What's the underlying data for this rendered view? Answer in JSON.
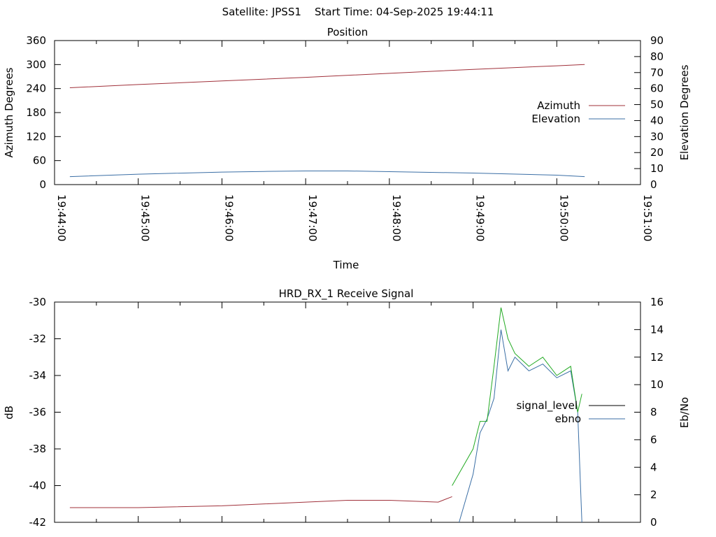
{
  "page_title": "Satellite: JPSS1    Start Time: 04-Sep-2025 19:44:11",
  "chart_data": [
    {
      "id": "position",
      "type": "line",
      "title": "Position",
      "xlabel": "Time",
      "ylabel": "Azimuth Degrees",
      "y2label": "Elevation Degrees",
      "x_ticks": [
        "19:44:00",
        "19:45:00",
        "19:46:00",
        "19:47:00",
        "19:48:00",
        "19:49:00",
        "19:50:00",
        "19:51:00"
      ],
      "xlim_seconds": [
        0,
        420
      ],
      "ylim": [
        0,
        360
      ],
      "yticks": [
        0,
        60,
        120,
        180,
        240,
        300,
        360
      ],
      "y2lim": [
        0,
        90
      ],
      "y2ticks": [
        0,
        10,
        20,
        30,
        40,
        50,
        60,
        70,
        80,
        90
      ],
      "legend_position": "right",
      "series": [
        {
          "name": "Azimuth",
          "axis": "y",
          "color": "#a0303a",
          "x": [
            "19:44:11",
            "19:45:00",
            "19:46:00",
            "19:47:00",
            "19:48:00",
            "19:49:00",
            "19:50:00",
            "19:50:20"
          ],
          "y": [
            242,
            250,
            259,
            268,
            278,
            288,
            297,
            300
          ]
        },
        {
          "name": "Elevation",
          "axis": "y2",
          "color": "#3a6ea5",
          "x": [
            "19:44:11",
            "19:45:00",
            "19:46:00",
            "19:46:30",
            "19:47:00",
            "19:47:30",
            "19:48:00",
            "19:49:00",
            "19:50:00",
            "19:50:20"
          ],
          "y": [
            5,
            6.5,
            7.8,
            8.2,
            8.5,
            8.5,
            8.1,
            7.2,
            5.9,
            5
          ]
        }
      ]
    },
    {
      "id": "receive-signal",
      "type": "line",
      "title": "HRD_RX_1 Receive Signal",
      "xlabel": "",
      "ylabel": "dB",
      "y2label": "Eb/No",
      "ylim": [
        -42,
        -30
      ],
      "yticks": [
        -42,
        -40,
        -38,
        -36,
        -34,
        -32,
        -30
      ],
      "y2lim": [
        0,
        16
      ],
      "y2ticks": [
        0,
        2,
        4,
        6,
        8,
        10,
        12,
        14,
        16
      ],
      "legend_position": "right",
      "series": [
        {
          "name": "signal_level",
          "axis": "y",
          "color": "#000000",
          "values": []
        },
        {
          "name": "ebno",
          "axis": "y2",
          "color": "#3a6ea5",
          "x": [
            "19:48:50",
            "19:49:00",
            "19:49:05",
            "19:49:10",
            "19:49:15",
            "19:49:20",
            "19:49:25",
            "19:49:30",
            "19:49:40",
            "19:49:50",
            "19:50:00",
            "19:50:10",
            "19:50:15",
            "19:50:18"
          ],
          "y": [
            0,
            3.5,
            6.5,
            7.5,
            9,
            14,
            11,
            12,
            11,
            11.5,
            10.5,
            11,
            8,
            0
          ]
        },
        {
          "name": "",
          "axis": "y",
          "color": "#a0303a",
          "x": [
            "19:44:11",
            "19:45:00",
            "19:46:00",
            "19:47:00",
            "19:47:30",
            "19:48:00",
            "19:48:35",
            "19:48:45"
          ],
          "y": [
            -41.2,
            -41.2,
            -41.1,
            -40.9,
            -40.8,
            -40.8,
            -40.9,
            -40.6
          ]
        },
        {
          "name": "",
          "axis": "y",
          "color": "#22aa22",
          "x": [
            "19:48:45",
            "19:49:00",
            "19:49:05",
            "19:49:10",
            "19:49:15",
            "19:49:20",
            "19:49:25",
            "19:49:30",
            "19:49:40",
            "19:49:50",
            "19:50:00",
            "19:50:10",
            "19:50:15",
            "19:50:18"
          ],
          "y": [
            -40,
            -38,
            -36.5,
            -36.5,
            -33.5,
            -30.3,
            -32,
            -32.8,
            -33.5,
            -33,
            -34,
            -33.5,
            -36,
            -35
          ]
        }
      ]
    }
  ]
}
